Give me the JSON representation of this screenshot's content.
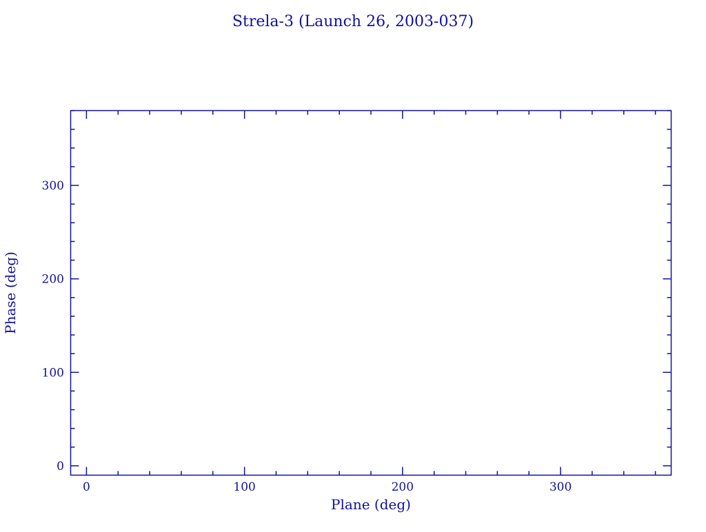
{
  "chart_data": {
    "type": "scatter",
    "title": "Strela-3 (Launch 26, 2003-037)",
    "xlabel": "Plane (deg)",
    "ylabel": "Phase (deg)",
    "xlim": [
      -10,
      370
    ],
    "ylim": [
      -10,
      380
    ],
    "xticks": [
      0,
      100,
      200,
      300
    ],
    "yticks": [
      0,
      100,
      200,
      300
    ],
    "x_minor_step": 20,
    "y_minor_step": 20,
    "grid": false,
    "series": [],
    "color": "#1010a0"
  }
}
